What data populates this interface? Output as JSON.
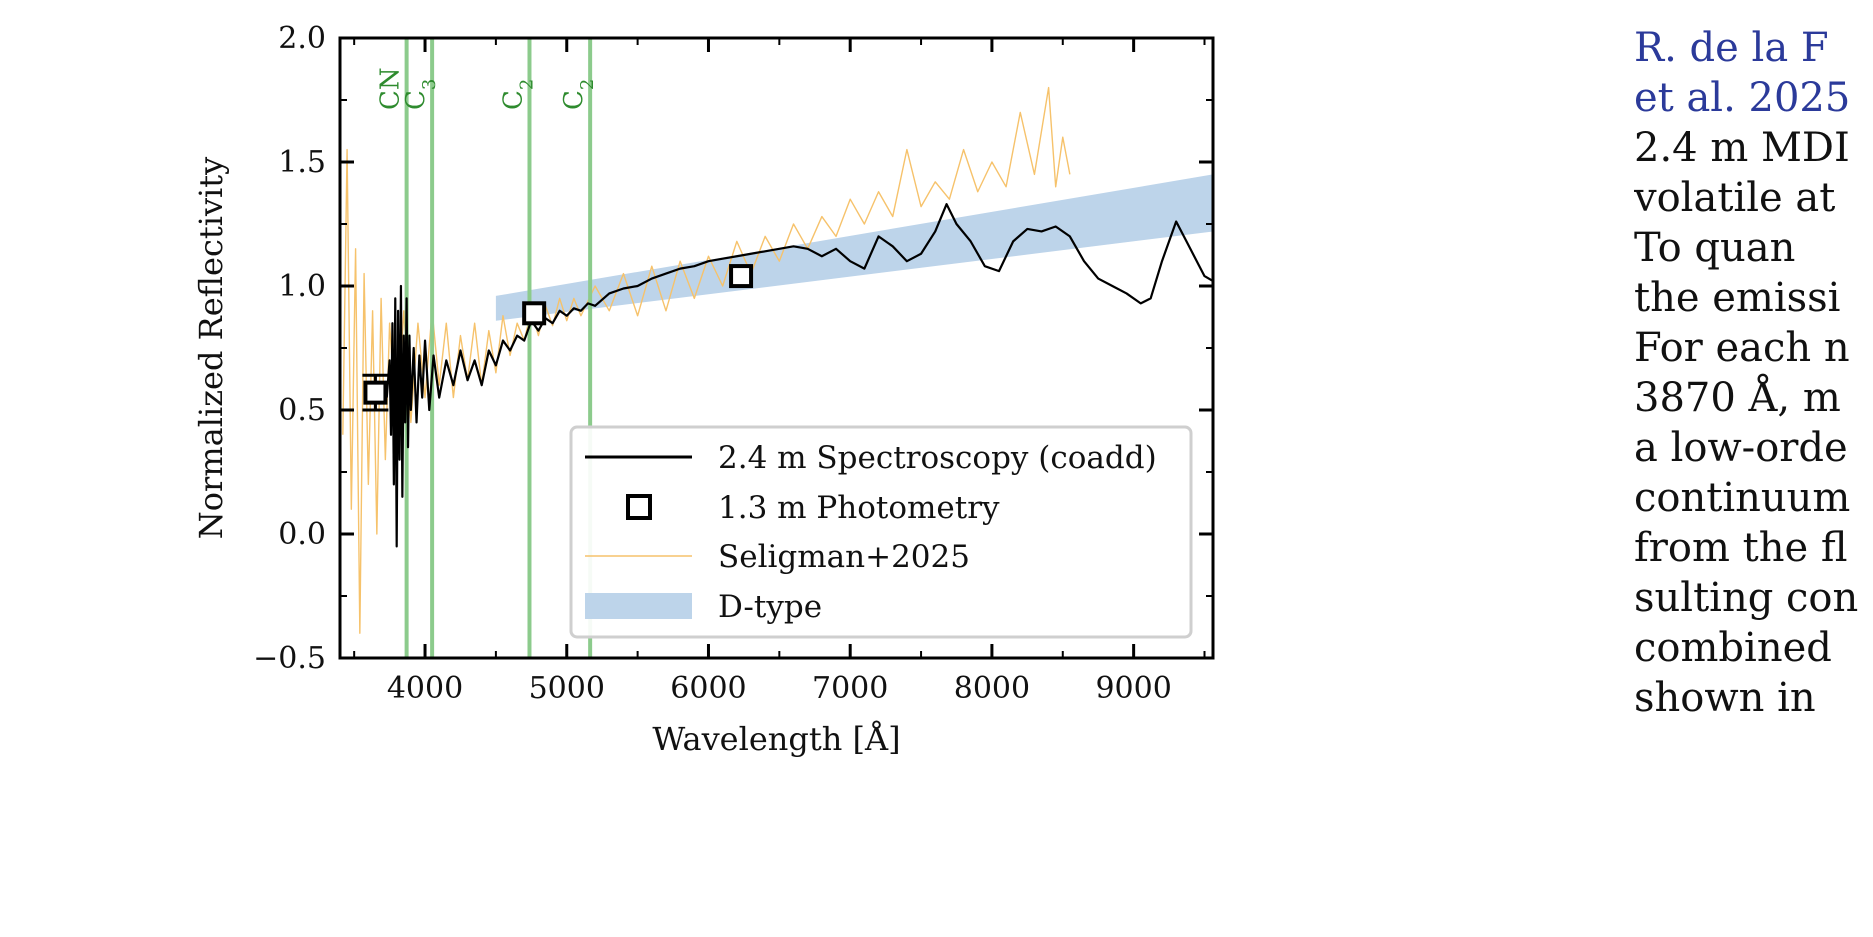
{
  "chart_data": {
    "type": "line",
    "xlabel": "Wavelength [Å]",
    "ylabel": "Normalized Reflectivity",
    "xlim": [
      3400,
      9560
    ],
    "ylim": [
      -0.5,
      2.0
    ],
    "x_ticks": [
      "4000",
      "5000",
      "6000",
      "7000",
      "8000",
      "9000"
    ],
    "y_ticks": [
      "−0.5",
      "0.0",
      "0.5",
      "1.0",
      "1.5",
      "2.0"
    ],
    "grid": false,
    "legend_position": "lower-right",
    "emission_lines": [
      {
        "label": "CN",
        "x": 3870
      },
      {
        "label": "C3",
        "label_base": "C",
        "label_sub": "3",
        "x": 4050
      },
      {
        "label": "C2",
        "label_base": "C",
        "label_sub": "2",
        "x": 4737
      },
      {
        "label": "C2",
        "label_base": "C",
        "label_sub": "2",
        "x": 5165
      }
    ],
    "series": [
      {
        "name": "2.4 m Spectroscopy (coadd)",
        "kind": "line",
        "color": "#000000",
        "points": [
          [
            3730,
            0.55
          ],
          [
            3750,
            0.7
          ],
          [
            3760,
            0.4
          ],
          [
            3770,
            0.85
          ],
          [
            3780,
            0.2
          ],
          [
            3790,
            0.95
          ],
          [
            3800,
            -0.05
          ],
          [
            3810,
            0.9
          ],
          [
            3820,
            0.3
          ],
          [
            3830,
            1.0
          ],
          [
            3840,
            0.15
          ],
          [
            3850,
            0.8
          ],
          [
            3860,
            0.45
          ],
          [
            3870,
            0.95
          ],
          [
            3880,
            0.35
          ],
          [
            3890,
            0.8
          ],
          [
            3900,
            0.5
          ],
          [
            3920,
            0.75
          ],
          [
            3940,
            0.45
          ],
          [
            3960,
            0.72
          ],
          [
            3980,
            0.55
          ],
          [
            4000,
            0.78
          ],
          [
            4030,
            0.5
          ],
          [
            4060,
            0.72
          ],
          [
            4100,
            0.55
          ],
          [
            4150,
            0.7
          ],
          [
            4200,
            0.6
          ],
          [
            4250,
            0.74
          ],
          [
            4300,
            0.62
          ],
          [
            4350,
            0.7
          ],
          [
            4400,
            0.6
          ],
          [
            4450,
            0.74
          ],
          [
            4500,
            0.68
          ],
          [
            4550,
            0.78
          ],
          [
            4600,
            0.74
          ],
          [
            4650,
            0.8
          ],
          [
            4700,
            0.78
          ],
          [
            4750,
            0.86
          ],
          [
            4800,
            0.82
          ],
          [
            4850,
            0.87
          ],
          [
            4900,
            0.85
          ],
          [
            4950,
            0.9
          ],
          [
            5000,
            0.88
          ],
          [
            5050,
            0.91
          ],
          [
            5100,
            0.9
          ],
          [
            5150,
            0.93
          ],
          [
            5200,
            0.92
          ],
          [
            5300,
            0.97
          ],
          [
            5400,
            0.99
          ],
          [
            5500,
            1.0
          ],
          [
            5600,
            1.03
          ],
          [
            5700,
            1.05
          ],
          [
            5800,
            1.07
          ],
          [
            5900,
            1.08
          ],
          [
            6000,
            1.1
          ],
          [
            6100,
            1.11
          ],
          [
            6200,
            1.12
          ],
          [
            6300,
            1.13
          ],
          [
            6400,
            1.14
          ],
          [
            6500,
            1.15
          ],
          [
            6600,
            1.16
          ],
          [
            6700,
            1.15
          ],
          [
            6800,
            1.12
          ],
          [
            6900,
            1.15
          ],
          [
            7000,
            1.1
          ],
          [
            7100,
            1.07
          ],
          [
            7200,
            1.2
          ],
          [
            7300,
            1.16
          ],
          [
            7400,
            1.1
          ],
          [
            7500,
            1.13
          ],
          [
            7600,
            1.22
          ],
          [
            7680,
            1.33
          ],
          [
            7750,
            1.25
          ],
          [
            7850,
            1.18
          ],
          [
            7950,
            1.08
          ],
          [
            8050,
            1.06
          ],
          [
            8150,
            1.18
          ],
          [
            8250,
            1.23
          ],
          [
            8350,
            1.22
          ],
          [
            8450,
            1.24
          ],
          [
            8550,
            1.2
          ],
          [
            8650,
            1.1
          ],
          [
            8750,
            1.03
          ],
          [
            8850,
            1.0
          ],
          [
            8950,
            0.97
          ],
          [
            9050,
            0.93
          ],
          [
            9120,
            0.95
          ],
          [
            9200,
            1.1
          ],
          [
            9300,
            1.26
          ],
          [
            9400,
            1.15
          ],
          [
            9500,
            1.04
          ],
          [
            9560,
            1.02
          ]
        ]
      },
      {
        "name": "1.3 m Photometry",
        "kind": "markers",
        "color": "#000000",
        "points": [
          [
            3650,
            0.57,
            0.07
          ],
          [
            4770,
            0.89,
            0.0
          ],
          [
            6230,
            1.04,
            0.0
          ]
        ]
      },
      {
        "name": "Seligman+2025",
        "kind": "line",
        "color": "#f6c26b",
        "points": [
          [
            3420,
            0.4
          ],
          [
            3450,
            1.55
          ],
          [
            3480,
            0.1
          ],
          [
            3510,
            1.15
          ],
          [
            3540,
            -0.4
          ],
          [
            3570,
            1.05
          ],
          [
            3600,
            0.2
          ],
          [
            3630,
            0.9
          ],
          [
            3660,
            0.0
          ],
          [
            3690,
            0.95
          ],
          [
            3720,
            0.3
          ],
          [
            3750,
            0.85
          ],
          [
            3800,
            0.4
          ],
          [
            3850,
            0.9
          ],
          [
            3900,
            0.45
          ],
          [
            3950,
            0.85
          ],
          [
            4000,
            0.55
          ],
          [
            4050,
            0.9
          ],
          [
            4100,
            0.6
          ],
          [
            4150,
            0.85
          ],
          [
            4200,
            0.55
          ],
          [
            4250,
            0.8
          ],
          [
            4300,
            0.62
          ],
          [
            4350,
            0.85
          ],
          [
            4400,
            0.6
          ],
          [
            4450,
            0.82
          ],
          [
            4500,
            0.65
          ],
          [
            4550,
            0.88
          ],
          [
            4600,
            0.72
          ],
          [
            4650,
            0.85
          ],
          [
            4700,
            0.78
          ],
          [
            4750,
            0.9
          ],
          [
            4800,
            0.8
          ],
          [
            4850,
            0.92
          ],
          [
            4900,
            0.84
          ],
          [
            4950,
            0.95
          ],
          [
            5000,
            0.86
          ],
          [
            5050,
            0.95
          ],
          [
            5100,
            0.88
          ],
          [
            5200,
            1.0
          ],
          [
            5300,
            0.9
          ],
          [
            5400,
            1.05
          ],
          [
            5500,
            0.88
          ],
          [
            5600,
            1.08
          ],
          [
            5700,
            0.9
          ],
          [
            5800,
            1.1
          ],
          [
            5900,
            0.95
          ],
          [
            6000,
            1.12
          ],
          [
            6100,
            1.0
          ],
          [
            6200,
            1.18
          ],
          [
            6300,
            1.05
          ],
          [
            6400,
            1.2
          ],
          [
            6500,
            1.1
          ],
          [
            6600,
            1.25
          ],
          [
            6700,
            1.15
          ],
          [
            6800,
            1.28
          ],
          [
            6900,
            1.2
          ],
          [
            7000,
            1.35
          ],
          [
            7100,
            1.25
          ],
          [
            7200,
            1.38
          ],
          [
            7300,
            1.28
          ],
          [
            7400,
            1.55
          ],
          [
            7500,
            1.32
          ],
          [
            7600,
            1.42
          ],
          [
            7700,
            1.35
          ],
          [
            7800,
            1.55
          ],
          [
            7900,
            1.38
          ],
          [
            8000,
            1.5
          ],
          [
            8100,
            1.4
          ],
          [
            8200,
            1.7
          ],
          [
            8300,
            1.45
          ],
          [
            8400,
            1.8
          ],
          [
            8450,
            1.4
          ],
          [
            8500,
            1.6
          ],
          [
            8550,
            1.45
          ]
        ]
      },
      {
        "name": "D-type",
        "kind": "band",
        "color": "#bdd4ea",
        "lower": [
          [
            4500,
            0.86
          ],
          [
            9560,
            1.22
          ]
        ],
        "upper": [
          [
            4500,
            0.96
          ],
          [
            9560,
            1.45
          ]
        ]
      }
    ]
  },
  "side_text": {
    "lines": [
      {
        "text": "R. de la F",
        "link": true
      },
      {
        "text": "et al. 2025",
        "link": true
      },
      {
        "text": "2.4 m MDI",
        "link": false
      },
      {
        "text": "volatile at",
        "link": false
      },
      {
        "text": "   To quan",
        "link": false
      },
      {
        "text": "the emissi",
        "link": false
      },
      {
        "text": "For each n",
        "link": false
      },
      {
        "text": "3870 Å, m",
        "link": false
      },
      {
        "text": "a low-orde",
        "link": false
      },
      {
        "text": "continuum",
        "link": false
      },
      {
        "text": "from the fl",
        "link": false
      },
      {
        "text": "sulting con",
        "link": false
      },
      {
        "text": "combined",
        "link": false
      },
      {
        "text": "shown in",
        "link": false
      }
    ]
  }
}
